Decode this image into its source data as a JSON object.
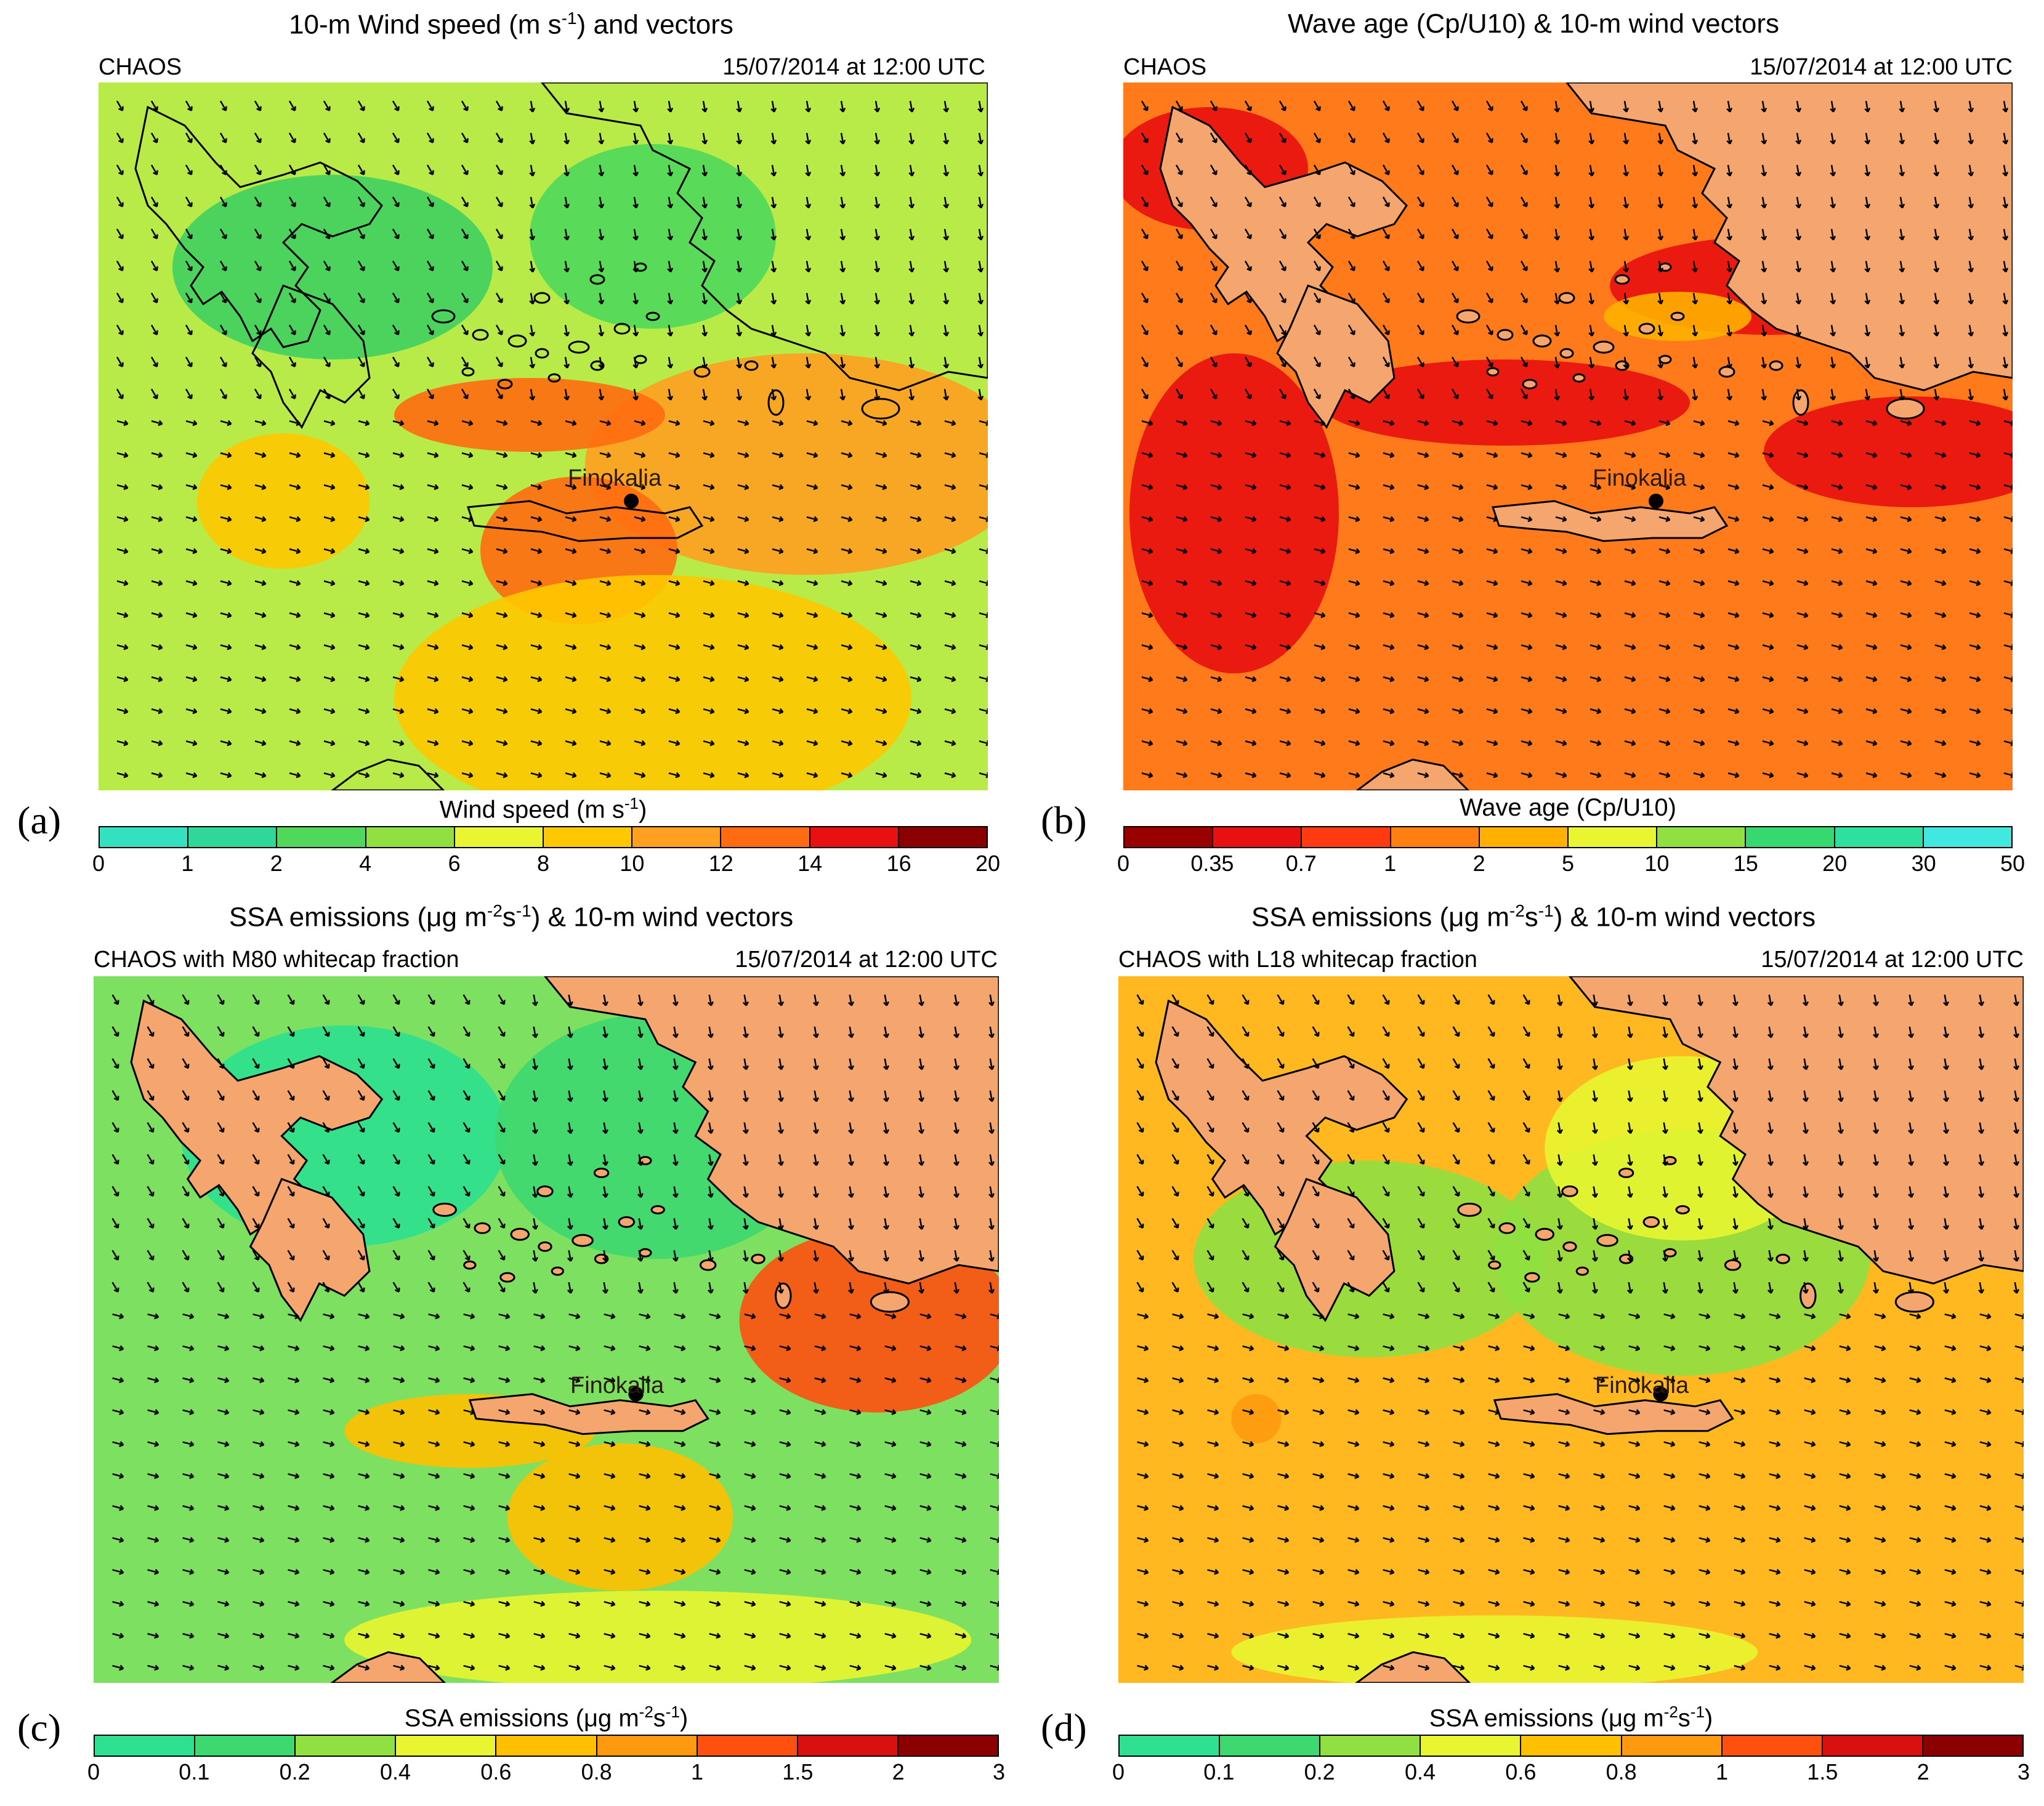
{
  "panels": [
    {
      "id": "a",
      "label": "(a)",
      "title_pre": "10-m Wind speed (m s",
      "title_sup": "-1",
      "title_post": ") and vectors",
      "model": "CHAOS",
      "datetime": "15/07/2014 at 12:00 UTC",
      "site": "Finokalia",
      "colorbar_title_pre": "Wind speed (m s",
      "colorbar_title_sup": "-1",
      "colorbar_title_post": ")",
      "colorbar_ticks": [
        "0",
        "1",
        "2",
        "4",
        "6",
        "8",
        "10",
        "12",
        "14",
        "16",
        "20"
      ],
      "colorbar_colors": [
        "#33e0c0",
        "#2ed89a",
        "#4fd85a",
        "#8fe040",
        "#e8f530",
        "#ffc800",
        "#ffa020",
        "#ff6b10",
        "#e81010",
        "#8b0000"
      ],
      "sea_fill": "#b8ea48",
      "land_fill": "none"
    },
    {
      "id": "b",
      "label": "(b)",
      "title_pre": "Wave age (Cp/U10) & 10-m wind vectors",
      "title_sup": "",
      "title_post": "",
      "model": "CHAOS",
      "datetime": "15/07/2014 at 12:00 UTC",
      "site": "Finokalia",
      "colorbar_title_pre": "Wave age (Cp/U10)",
      "colorbar_title_sup": "",
      "colorbar_title_post": "",
      "colorbar_ticks": [
        "0",
        "0.35",
        "0.7",
        "1",
        "2",
        "5",
        "10",
        "15",
        "20",
        "30",
        "50"
      ],
      "colorbar_colors": [
        "#9b0000",
        "#e81010",
        "#ff3a10",
        "#ff7f10",
        "#ffb000",
        "#e8f530",
        "#8fe040",
        "#36d870",
        "#2ee0a0",
        "#40e8e0"
      ],
      "sea_fill": "#ff7a1a",
      "land_fill": "#f5a66e"
    },
    {
      "id": "c",
      "label": "(c)",
      "title_pre": "SSA emissions (μg m",
      "title_sup": "-2",
      "title_mid": "s",
      "title_sup2": "-1",
      "title_post": ") & 10-m wind vectors",
      "model": "CHAOS with M80 whitecap fraction",
      "datetime": "15/07/2014 at 12:00 UTC",
      "site": "Finokalia",
      "colorbar_title_pre": "SSA emissions (μg m",
      "colorbar_title_sup": "-2",
      "colorbar_title_mid": "s",
      "colorbar_title_sup2": "-1",
      "colorbar_title_post": ")",
      "colorbar_ticks": [
        "0",
        "0.1",
        "0.2",
        "0.4",
        "0.6",
        "0.8",
        "1",
        "1.5",
        "2",
        "3"
      ],
      "colorbar_colors": [
        "#2ee090",
        "#3ed870",
        "#8fe040",
        "#e8f530",
        "#ffc000",
        "#ff9a10",
        "#ff5010",
        "#d81010",
        "#8b0000"
      ],
      "sea_fill": "#7ee060",
      "land_fill": "#f5a66e"
    },
    {
      "id": "d",
      "label": "(d)",
      "title_pre": "SSA emissions (μg m",
      "title_sup": "-2",
      "title_mid": "s",
      "title_sup2": "-1",
      "title_post": ") & 10-m wind vectors",
      "model": "CHAOS with L18 whitecap fraction",
      "datetime": "15/07/2014 at 12:00 UTC",
      "site": "Finokalia",
      "colorbar_title_pre": "SSA emissions (μg m",
      "colorbar_title_sup": "-2",
      "colorbar_title_mid": "s",
      "colorbar_title_sup2": "-1",
      "colorbar_title_post": ")",
      "colorbar_ticks": [
        "0",
        "0.1",
        "0.2",
        "0.4",
        "0.6",
        "0.8",
        "1",
        "1.5",
        "2",
        "3"
      ],
      "colorbar_colors": [
        "#2ee090",
        "#3ed870",
        "#8fe040",
        "#e8f530",
        "#ffc000",
        "#ff9a10",
        "#ff5010",
        "#d81010",
        "#8b0000"
      ],
      "sea_fill": "#ffb820",
      "land_fill": "#f5a66e"
    }
  ]
}
